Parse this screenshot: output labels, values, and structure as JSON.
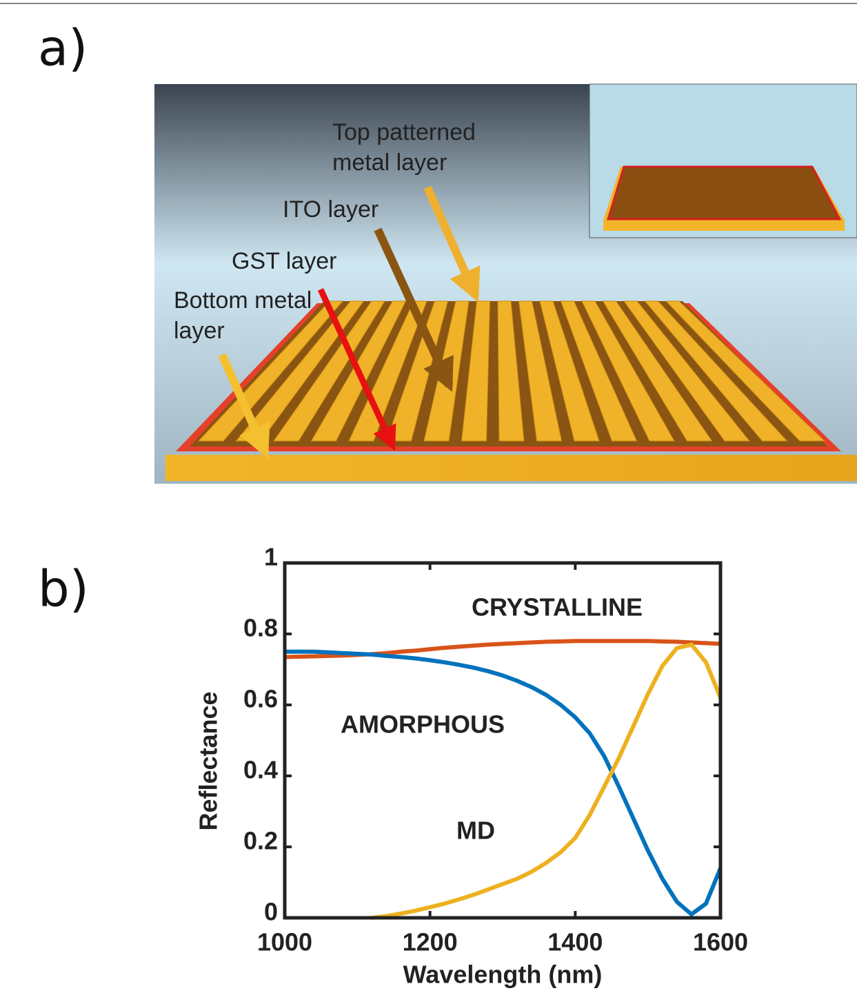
{
  "panel_labels": [
    "a)",
    "b)"
  ],
  "diagram": {
    "labels": [
      "Top patterned metal layer",
      "ITO layer",
      "GST layer",
      "Bottom metal layer"
    ]
  },
  "chart_data": {
    "type": "line",
    "xlabel": "Wavelength (nm)",
    "ylabel": "Reflectance",
    "x": [
      1000,
      1020,
      1040,
      1060,
      1080,
      1100,
      1120,
      1140,
      1160,
      1180,
      1200,
      1220,
      1240,
      1260,
      1280,
      1300,
      1320,
      1340,
      1360,
      1380,
      1400,
      1420,
      1440,
      1460,
      1480,
      1500,
      1520,
      1540,
      1560,
      1580,
      1600
    ],
    "xlim": [
      1000,
      1600
    ],
    "xticks": [
      1000,
      1200,
      1400,
      1600
    ],
    "ylim": [
      0,
      1
    ],
    "yticks": [
      0,
      0.2,
      0.4,
      0.6,
      0.8,
      1
    ],
    "series": [
      {
        "name": "CRYSTALLINE",
        "color": "#d95319",
        "values": [
          0.735,
          0.736,
          0.737,
          0.738,
          0.739,
          0.741,
          0.743,
          0.746,
          0.75,
          0.753,
          0.757,
          0.761,
          0.764,
          0.767,
          0.77,
          0.772,
          0.774,
          0.776,
          0.778,
          0.779,
          0.78,
          0.78,
          0.78,
          0.78,
          0.78,
          0.78,
          0.779,
          0.778,
          0.776,
          0.774,
          0.772
        ]
      },
      {
        "name": "AMORPHOUS",
        "color": "#0072bd",
        "values": [
          0.75,
          0.75,
          0.75,
          0.748,
          0.746,
          0.744,
          0.742,
          0.738,
          0.735,
          0.731,
          0.726,
          0.72,
          0.713,
          0.705,
          0.695,
          0.683,
          0.668,
          0.65,
          0.628,
          0.6,
          0.565,
          0.52,
          0.455,
          0.37,
          0.28,
          0.19,
          0.11,
          0.045,
          0.01,
          0.04,
          0.14
        ]
      },
      {
        "name": "MD",
        "color": "#edb120",
        "values": [
          null,
          null,
          null,
          null,
          null,
          null,
          0.0,
          0.005,
          0.012,
          0.02,
          0.03,
          0.04,
          0.052,
          0.065,
          0.08,
          0.095,
          0.11,
          0.13,
          0.155,
          0.185,
          0.225,
          0.29,
          0.37,
          0.45,
          0.54,
          0.63,
          0.71,
          0.76,
          0.77,
          0.72,
          0.62
        ]
      }
    ]
  }
}
